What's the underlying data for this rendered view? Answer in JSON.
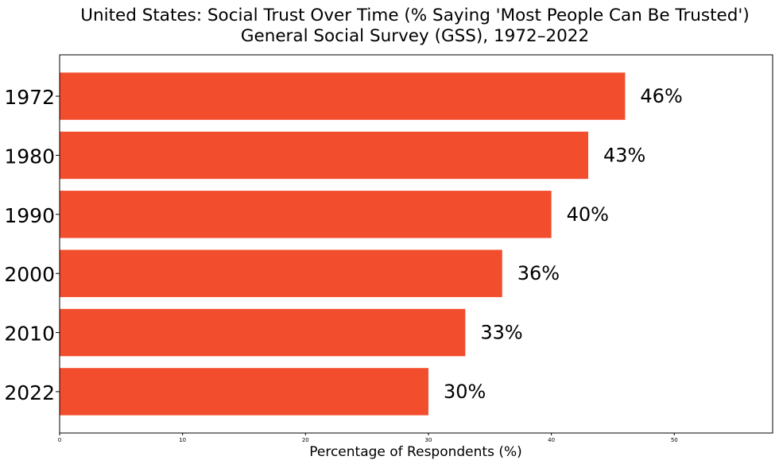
{
  "chart_data": {
    "type": "bar",
    "orientation": "horizontal",
    "title": "United States: Social Trust Over Time (% Saying 'Most People Can Be Trusted')",
    "subtitle": "General Social Survey (GSS), 1972–2022",
    "xlabel": "Percentage of Respondents (%)",
    "ylabel": "",
    "categories": [
      "1972",
      "1980",
      "1990",
      "2000",
      "2010",
      "2022"
    ],
    "values": [
      46,
      43,
      40,
      36,
      33,
      30
    ],
    "data_labels": [
      "46%",
      "43%",
      "40%",
      "36%",
      "33%",
      "30%"
    ],
    "xlim": [
      0,
      58
    ],
    "xticks": [
      0,
      10,
      20,
      30,
      40,
      50
    ],
    "grid": false,
    "bar_color": "#f24e2e"
  }
}
